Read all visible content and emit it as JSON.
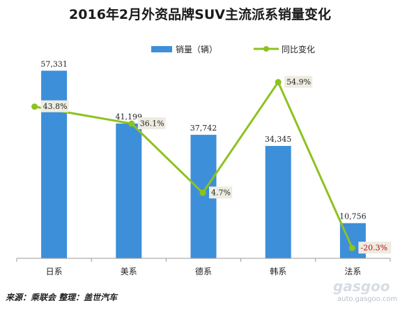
{
  "chart_data": {
    "type": "bar",
    "title": "2016年2月外资品牌SUV主流派系销量变化",
    "categories": [
      "日系",
      "美系",
      "德系",
      "韩系",
      "法系"
    ],
    "series": [
      {
        "name": "销量（辆）",
        "type": "bar",
        "values": [
          57331,
          41199,
          37742,
          34345,
          10756
        ],
        "labels": [
          "57,331",
          "41,199",
          "37,742",
          "34,345",
          "10,756"
        ],
        "color": "#3d8fd9"
      },
      {
        "name": "同比变化",
        "type": "line",
        "values": [
          43.8,
          36.1,
          4.7,
          54.9,
          -20.3
        ],
        "labels": [
          "43.8%",
          "36.1%",
          "4.7%",
          "54.9%",
          "-20.3%"
        ],
        "color": "#8dc21f"
      }
    ],
    "ylim": [
      0,
      64000
    ],
    "y2lim": [
      -25,
      70
    ],
    "legend": "top-center",
    "grid": false
  },
  "footer": {
    "source": "来源：乘联会  整理：盖世汽车"
  },
  "watermark": {
    "logo": "gasgoo",
    "url": "auto.gasgoo.com"
  }
}
